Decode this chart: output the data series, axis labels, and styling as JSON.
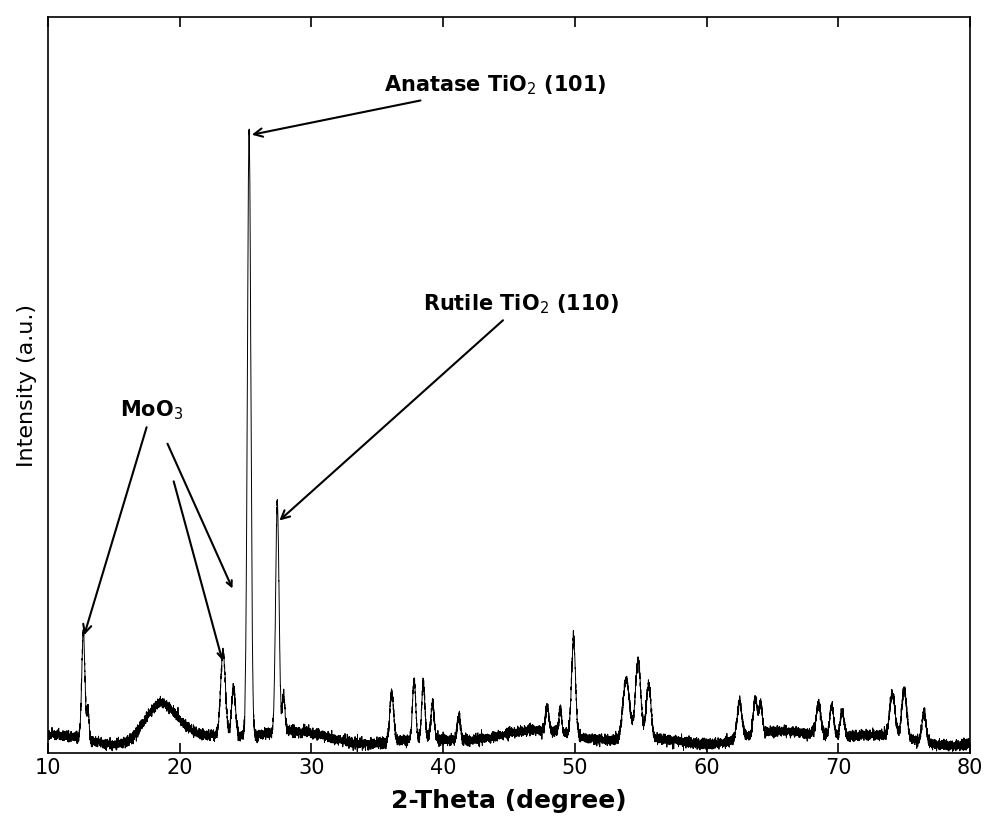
{
  "xlabel": "2-Theta (degree)",
  "ylabel": "Intensity (a.u.)",
  "xlim": [
    10,
    80
  ],
  "xticks": [
    10,
    20,
    30,
    40,
    50,
    60,
    70,
    80
  ],
  "background_color": "#ffffff",
  "line_color": "#000000",
  "title_fontsize": 16,
  "label_fontsize": 18,
  "tick_fontsize": 15
}
